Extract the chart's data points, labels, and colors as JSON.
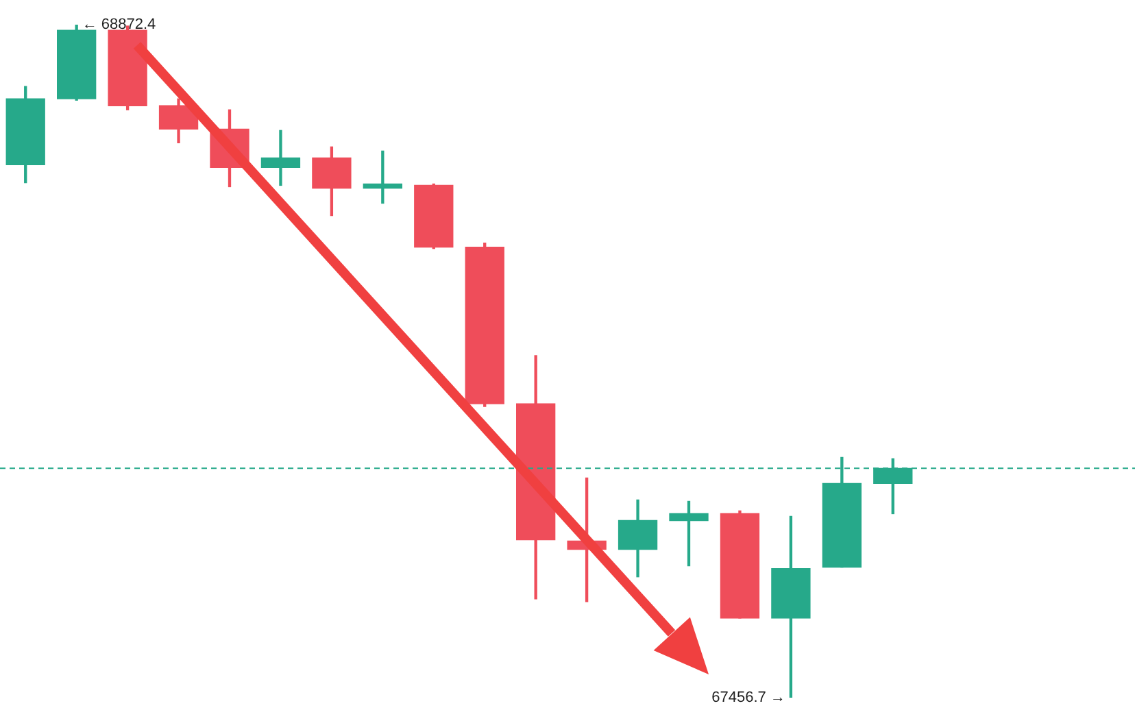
{
  "chart_data": {
    "type": "candlestick",
    "categories": [
      null,
      null,
      null,
      null,
      null,
      null,
      null,
      null,
      null,
      null,
      null,
      null,
      null,
      null,
      null,
      null,
      null,
      null
    ],
    "ohlc": [
      [
        68577.7,
        68742.4,
        68540.1,
        68716.4
      ],
      [
        68716.4,
        68872.4,
        68713.5,
        68860.8
      ],
      [
        68860.8,
        68869.5,
        68693.3,
        68701.9
      ],
      [
        68701.9,
        68716.4,
        68623.9,
        68652.8
      ],
      [
        68652.8,
        68693.3,
        68531.5,
        68571.9
      ],
      [
        68571.9,
        68649.9,
        68534.4,
        68592.1
      ],
      [
        68592.1,
        68615.3,
        68470.8,
        68528.6
      ],
      [
        68528.6,
        68606.6,
        68496.8,
        68537.3
      ],
      [
        68534.4,
        68537.3,
        68401.5,
        68404.3
      ],
      [
        68404.3,
        68413.0,
        68069.2,
        68075.0
      ],
      [
        68075.0,
        68176.1,
        67664.7,
        67788.9
      ],
      [
        67786.1,
        67919.0,
        67658.9,
        67768.7
      ],
      [
        67768.7,
        67872.7,
        67710.9,
        67829.4
      ],
      [
        67829.4,
        67869.8,
        67734.1,
        67843.8
      ],
      [
        67843.8,
        67849.6,
        67624.3,
        67624.3
      ],
      [
        67624.3,
        67838.1,
        67456.7,
        67728.3
      ],
      [
        67731.2,
        67962.3,
        67731.2,
        67907.4
      ],
      [
        67907.4,
        67959.4,
        67843.8,
        67939.2
      ]
    ],
    "colors": [
      "#26a98a",
      "#26a98a",
      "#ef4d5a",
      "#ef4d5a",
      "#ef4d5a",
      "#26a98a",
      "#ef4d5a",
      "#26a98a",
      "#ef4d5a",
      "#ef4d5a",
      "#ef4d5a",
      "#ef4d5a",
      "#26a98a",
      "#26a98a",
      "#ef4d5a",
      "#26a98a",
      "#26a98a",
      "#26a98a"
    ],
    "ref_lines": [
      {
        "axis": "y",
        "value": 67939.2,
        "color": "#26a98a",
        "line_style": "dashed"
      }
    ],
    "annotations": [
      "← 68872.4",
      "67456.7 →"
    ],
    "tick_labels": false,
    "legend": false
  }
}
